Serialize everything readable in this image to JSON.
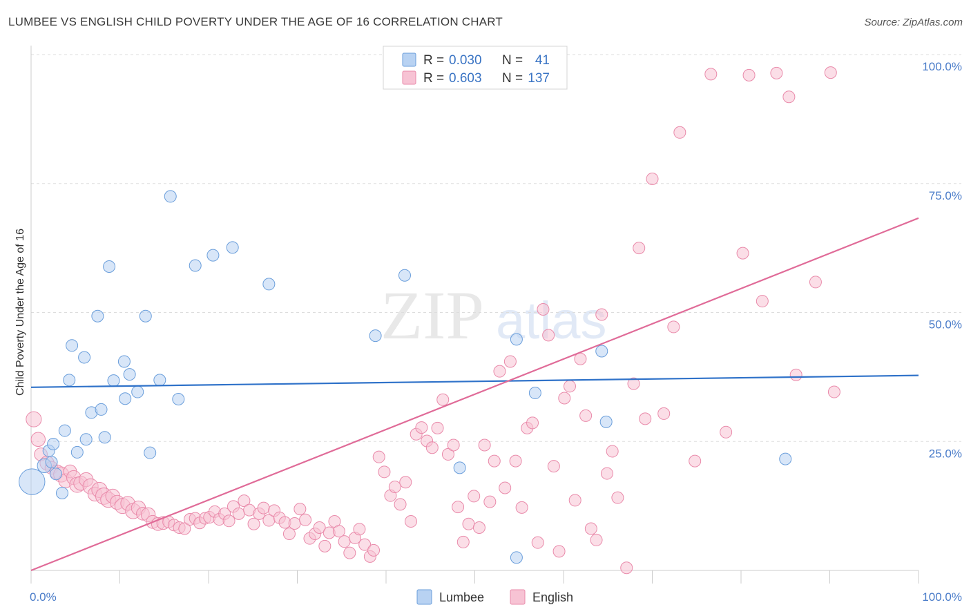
{
  "title": "LUMBEE VS ENGLISH CHILD POVERTY UNDER THE AGE OF 16 CORRELATION CHART",
  "source": "Source: ZipAtlas.com",
  "watermark": {
    "part1": "ZIP",
    "part2": "atlas"
  },
  "colors": {
    "lumbee_fill": "#b8d2f2",
    "lumbee_stroke": "#6a9edb",
    "lumbee_line": "#2f72c9",
    "english_fill": "#f7c3d4",
    "english_stroke": "#e98aaa",
    "english_line": "#e06b98",
    "grid": "#dddddd",
    "tick_label": "#4a7cc9"
  },
  "legend": {
    "rows": [
      {
        "r_label": "R =",
        "r_value": "0.030",
        "n_label": "N =",
        "n_value": "41"
      },
      {
        "r_label": "R =",
        "r_value": "0.603",
        "n_label": "N =",
        "n_value": "137"
      }
    ]
  },
  "bottom_legend": {
    "lumbee": "Lumbee",
    "english": "English"
  },
  "chart_data": {
    "type": "scatter",
    "title": "LUMBEE VS ENGLISH CHILD POVERTY UNDER THE AGE OF 16 CORRELATION CHART",
    "xlabel": "",
    "ylabel": "Child Poverty Under the Age of 16",
    "xlim": [
      0,
      100
    ],
    "ylim": [
      0,
      100
    ],
    "x_tick_labels": [
      "0.0%",
      "100.0%"
    ],
    "y_ticks": [
      25,
      50,
      75,
      100
    ],
    "y_tick_labels": [
      "25.0%",
      "50.0%",
      "75.0%",
      "100.0%"
    ],
    "grid": true,
    "legend_position": "top-center",
    "series": [
      {
        "name": "Lumbee",
        "r": 0.03,
        "n": 41,
        "trend": {
          "x": [
            0,
            100
          ],
          "y": [
            35.5,
            37.8
          ]
        },
        "points": [
          {
            "x": 0.1,
            "y": 17.2,
            "s": 2.2
          },
          {
            "x": 1.5,
            "y": 20.3,
            "s": 1.2
          },
          {
            "x": 2.0,
            "y": 23.2,
            "s": 1
          },
          {
            "x": 2.3,
            "y": 21.0,
            "s": 1
          },
          {
            "x": 2.5,
            "y": 24.5,
            "s": 1
          },
          {
            "x": 2.8,
            "y": 18.7,
            "s": 1
          },
          {
            "x": 3.5,
            "y": 15.0,
            "s": 1
          },
          {
            "x": 3.8,
            "y": 27.1,
            "s": 1
          },
          {
            "x": 4.3,
            "y": 36.9,
            "s": 1
          },
          {
            "x": 4.6,
            "y": 43.6,
            "s": 1
          },
          {
            "x": 5.2,
            "y": 22.9,
            "s": 1
          },
          {
            "x": 6.0,
            "y": 41.3,
            "s": 1
          },
          {
            "x": 6.2,
            "y": 25.4,
            "s": 1
          },
          {
            "x": 6.8,
            "y": 30.6,
            "s": 1
          },
          {
            "x": 7.5,
            "y": 49.3,
            "s": 1
          },
          {
            "x": 7.9,
            "y": 31.2,
            "s": 1
          },
          {
            "x": 8.3,
            "y": 25.8,
            "s": 1
          },
          {
            "x": 8.8,
            "y": 58.9,
            "s": 1
          },
          {
            "x": 9.3,
            "y": 36.8,
            "s": 1
          },
          {
            "x": 10.5,
            "y": 40.5,
            "s": 1
          },
          {
            "x": 10.6,
            "y": 33.3,
            "s": 1
          },
          {
            "x": 11.1,
            "y": 38.0,
            "s": 1
          },
          {
            "x": 12.0,
            "y": 34.6,
            "s": 1
          },
          {
            "x": 12.9,
            "y": 49.3,
            "s": 1
          },
          {
            "x": 13.4,
            "y": 22.8,
            "s": 1
          },
          {
            "x": 14.5,
            "y": 36.9,
            "s": 1
          },
          {
            "x": 15.7,
            "y": 72.5,
            "s": 1
          },
          {
            "x": 16.6,
            "y": 33.2,
            "s": 1
          },
          {
            "x": 18.5,
            "y": 59.1,
            "s": 1
          },
          {
            "x": 20.5,
            "y": 61.1,
            "s": 1
          },
          {
            "x": 22.7,
            "y": 62.6,
            "s": 1
          },
          {
            "x": 26.8,
            "y": 55.5,
            "s": 1
          },
          {
            "x": 38.8,
            "y": 45.5,
            "s": 1
          },
          {
            "x": 42.1,
            "y": 57.2,
            "s": 1
          },
          {
            "x": 48.3,
            "y": 19.9,
            "s": 1
          },
          {
            "x": 54.7,
            "y": 44.8,
            "s": 1
          },
          {
            "x": 54.7,
            "y": 2.5,
            "s": 1
          },
          {
            "x": 56.8,
            "y": 34.4,
            "s": 1
          },
          {
            "x": 64.3,
            "y": 42.5,
            "s": 1
          },
          {
            "x": 64.8,
            "y": 28.8,
            "s": 1
          },
          {
            "x": 85.0,
            "y": 21.6,
            "s": 1
          }
        ]
      },
      {
        "name": "English",
        "r": 0.603,
        "n": 137,
        "trend": {
          "x": [
            0,
            100
          ],
          "y": [
            0,
            68.3
          ]
        },
        "points": [
          {
            "x": 0.3,
            "y": 29.3,
            "s": 1.3
          },
          {
            "x": 0.8,
            "y": 25.4,
            "s": 1.2
          },
          {
            "x": 1.1,
            "y": 22.5,
            "s": 1.1
          },
          {
            "x": 1.8,
            "y": 20.8,
            "s": 1.2
          },
          {
            "x": 2.3,
            "y": 19.9,
            "s": 1.1
          },
          {
            "x": 2.9,
            "y": 19.1,
            "s": 1.2
          },
          {
            "x": 3.4,
            "y": 18.6,
            "s": 1.3
          },
          {
            "x": 3.9,
            "y": 17.4,
            "s": 1.2
          },
          {
            "x": 4.4,
            "y": 19.2,
            "s": 1.1
          },
          {
            "x": 4.8,
            "y": 18.0,
            "s": 1.2
          },
          {
            "x": 5.2,
            "y": 16.6,
            "s": 1.3
          },
          {
            "x": 5.6,
            "y": 16.9,
            "s": 1.2
          },
          {
            "x": 6.2,
            "y": 17.6,
            "s": 1.2
          },
          {
            "x": 6.7,
            "y": 16.3,
            "s": 1.3
          },
          {
            "x": 7.2,
            "y": 14.8,
            "s": 1.2
          },
          {
            "x": 7.7,
            "y": 15.6,
            "s": 1.3
          },
          {
            "x": 8.2,
            "y": 14.4,
            "s": 1.4
          },
          {
            "x": 8.7,
            "y": 13.7,
            "s": 1.3
          },
          {
            "x": 9.2,
            "y": 14.4,
            "s": 1.2
          },
          {
            "x": 9.7,
            "y": 13.2,
            "s": 1.2
          },
          {
            "x": 10.3,
            "y": 12.5,
            "s": 1.3
          },
          {
            "x": 10.9,
            "y": 13.0,
            "s": 1.2
          },
          {
            "x": 11.5,
            "y": 11.5,
            "s": 1.3
          },
          {
            "x": 12.1,
            "y": 12.1,
            "s": 1.2
          },
          {
            "x": 12.6,
            "y": 11.0,
            "s": 1.1
          },
          {
            "x": 13.2,
            "y": 10.8,
            "s": 1.2
          },
          {
            "x": 13.7,
            "y": 9.4,
            "s": 1.1
          },
          {
            "x": 14.3,
            "y": 9.0,
            "s": 1.1
          },
          {
            "x": 14.9,
            "y": 9.2,
            "s": 1.1
          },
          {
            "x": 15.5,
            "y": 9.4,
            "s": 1
          },
          {
            "x": 16.1,
            "y": 8.8,
            "s": 1
          },
          {
            "x": 16.7,
            "y": 8.3,
            "s": 1
          },
          {
            "x": 17.3,
            "y": 8.1,
            "s": 1
          },
          {
            "x": 17.9,
            "y": 9.9,
            "s": 1
          },
          {
            "x": 18.5,
            "y": 10.1,
            "s": 1
          },
          {
            "x": 19.0,
            "y": 9.2,
            "s": 1
          },
          {
            "x": 19.6,
            "y": 10.1,
            "s": 1
          },
          {
            "x": 20.1,
            "y": 10.3,
            "s": 1
          },
          {
            "x": 20.7,
            "y": 11.4,
            "s": 1
          },
          {
            "x": 21.2,
            "y": 9.9,
            "s": 1
          },
          {
            "x": 21.8,
            "y": 11.0,
            "s": 1
          },
          {
            "x": 22.3,
            "y": 9.6,
            "s": 1
          },
          {
            "x": 22.8,
            "y": 12.4,
            "s": 1
          },
          {
            "x": 23.4,
            "y": 11.0,
            "s": 1
          },
          {
            "x": 24.0,
            "y": 13.5,
            "s": 1
          },
          {
            "x": 24.6,
            "y": 11.7,
            "s": 1
          },
          {
            "x": 25.1,
            "y": 9.0,
            "s": 1
          },
          {
            "x": 25.7,
            "y": 11.0,
            "s": 1
          },
          {
            "x": 26.2,
            "y": 12.1,
            "s": 1
          },
          {
            "x": 26.8,
            "y": 9.7,
            "s": 1
          },
          {
            "x": 27.4,
            "y": 11.6,
            "s": 1
          },
          {
            "x": 28.0,
            "y": 10.2,
            "s": 1
          },
          {
            "x": 28.6,
            "y": 9.3,
            "s": 1
          },
          {
            "x": 29.1,
            "y": 7.1,
            "s": 1
          },
          {
            "x": 29.7,
            "y": 9.1,
            "s": 1
          },
          {
            "x": 30.3,
            "y": 11.9,
            "s": 1
          },
          {
            "x": 30.9,
            "y": 9.8,
            "s": 1
          },
          {
            "x": 31.4,
            "y": 6.2,
            "s": 1
          },
          {
            "x": 32.0,
            "y": 7.1,
            "s": 1
          },
          {
            "x": 32.5,
            "y": 8.3,
            "s": 1
          },
          {
            "x": 33.1,
            "y": 4.7,
            "s": 1
          },
          {
            "x": 33.6,
            "y": 7.3,
            "s": 1
          },
          {
            "x": 34.2,
            "y": 9.5,
            "s": 1
          },
          {
            "x": 34.7,
            "y": 7.6,
            "s": 1
          },
          {
            "x": 35.3,
            "y": 5.6,
            "s": 1
          },
          {
            "x": 35.9,
            "y": 3.4,
            "s": 1
          },
          {
            "x": 36.5,
            "y": 6.3,
            "s": 1
          },
          {
            "x": 37.0,
            "y": 8.0,
            "s": 1
          },
          {
            "x": 37.6,
            "y": 5.0,
            "s": 1
          },
          {
            "x": 38.2,
            "y": 2.7,
            "s": 1
          },
          {
            "x": 38.6,
            "y": 3.9,
            "s": 1
          },
          {
            "x": 39.2,
            "y": 22.0,
            "s": 1
          },
          {
            "x": 39.8,
            "y": 19.1,
            "s": 1
          },
          {
            "x": 40.5,
            "y": 14.5,
            "s": 1
          },
          {
            "x": 41.0,
            "y": 16.2,
            "s": 1
          },
          {
            "x": 41.6,
            "y": 12.8,
            "s": 1
          },
          {
            "x": 42.2,
            "y": 17.1,
            "s": 1
          },
          {
            "x": 42.8,
            "y": 9.5,
            "s": 1
          },
          {
            "x": 43.4,
            "y": 26.4,
            "s": 1
          },
          {
            "x": 44.0,
            "y": 27.7,
            "s": 1
          },
          {
            "x": 44.6,
            "y": 25.1,
            "s": 1
          },
          {
            "x": 45.2,
            "y": 23.8,
            "s": 1
          },
          {
            "x": 45.8,
            "y": 27.6,
            "s": 1
          },
          {
            "x": 46.4,
            "y": 33.1,
            "s": 1
          },
          {
            "x": 47.0,
            "y": 22.5,
            "s": 1
          },
          {
            "x": 47.6,
            "y": 24.3,
            "s": 1
          },
          {
            "x": 48.1,
            "y": 12.3,
            "s": 1
          },
          {
            "x": 48.7,
            "y": 5.5,
            "s": 1
          },
          {
            "x": 49.3,
            "y": 9.0,
            "s": 1
          },
          {
            "x": 49.9,
            "y": 14.4,
            "s": 1
          },
          {
            "x": 50.5,
            "y": 8.3,
            "s": 1
          },
          {
            "x": 51.1,
            "y": 24.3,
            "s": 1
          },
          {
            "x": 51.7,
            "y": 13.3,
            "s": 1
          },
          {
            "x": 52.2,
            "y": 21.2,
            "s": 1
          },
          {
            "x": 52.8,
            "y": 38.6,
            "s": 1
          },
          {
            "x": 53.4,
            "y": 16.0,
            "s": 1
          },
          {
            "x": 54.0,
            "y": 40.5,
            "s": 1
          },
          {
            "x": 54.6,
            "y": 21.2,
            "s": 1
          },
          {
            "x": 55.3,
            "y": 12.2,
            "s": 1
          },
          {
            "x": 55.9,
            "y": 27.6,
            "s": 1
          },
          {
            "x": 56.5,
            "y": 28.6,
            "s": 1
          },
          {
            "x": 57.1,
            "y": 5.4,
            "s": 1
          },
          {
            "x": 57.7,
            "y": 50.6,
            "s": 1
          },
          {
            "x": 58.3,
            "y": 45.6,
            "s": 1
          },
          {
            "x": 58.9,
            "y": 20.2,
            "s": 1
          },
          {
            "x": 59.5,
            "y": 3.7,
            "s": 1
          },
          {
            "x": 60.1,
            "y": 33.4,
            "s": 1
          },
          {
            "x": 60.7,
            "y": 35.7,
            "s": 1
          },
          {
            "x": 61.3,
            "y": 13.6,
            "s": 1
          },
          {
            "x": 61.9,
            "y": 41.0,
            "s": 1
          },
          {
            "x": 62.5,
            "y": 30.0,
            "s": 1
          },
          {
            "x": 63.1,
            "y": 8.1,
            "s": 1
          },
          {
            "x": 63.7,
            "y": 5.9,
            "s": 1
          },
          {
            "x": 64.3,
            "y": 49.6,
            "s": 1
          },
          {
            "x": 64.9,
            "y": 18.8,
            "s": 1
          },
          {
            "x": 65.5,
            "y": 23.1,
            "s": 1
          },
          {
            "x": 66.1,
            "y": 14.1,
            "s": 1
          },
          {
            "x": 67.1,
            "y": 0.5,
            "s": 1
          },
          {
            "x": 67.9,
            "y": 36.2,
            "s": 1
          },
          {
            "x": 68.5,
            "y": 62.5,
            "s": 1
          },
          {
            "x": 69.2,
            "y": 29.4,
            "s": 1
          },
          {
            "x": 70.0,
            "y": 75.9,
            "s": 1
          },
          {
            "x": 71.3,
            "y": 30.4,
            "s": 1
          },
          {
            "x": 72.4,
            "y": 47.2,
            "s": 1
          },
          {
            "x": 73.1,
            "y": 84.9,
            "s": 1
          },
          {
            "x": 74.8,
            "y": 21.2,
            "s": 1
          },
          {
            "x": 76.6,
            "y": 96.2,
            "s": 1
          },
          {
            "x": 78.3,
            "y": 26.8,
            "s": 1
          },
          {
            "x": 80.2,
            "y": 61.5,
            "s": 1
          },
          {
            "x": 80.9,
            "y": 96.0,
            "s": 1
          },
          {
            "x": 82.4,
            "y": 52.2,
            "s": 1
          },
          {
            "x": 84.0,
            "y": 96.4,
            "s": 1
          },
          {
            "x": 85.4,
            "y": 91.8,
            "s": 1
          },
          {
            "x": 86.2,
            "y": 37.9,
            "s": 1
          },
          {
            "x": 88.4,
            "y": 55.9,
            "s": 1
          },
          {
            "x": 90.1,
            "y": 96.5,
            "s": 1
          },
          {
            "x": 90.5,
            "y": 34.6,
            "s": 1
          }
        ]
      }
    ]
  }
}
